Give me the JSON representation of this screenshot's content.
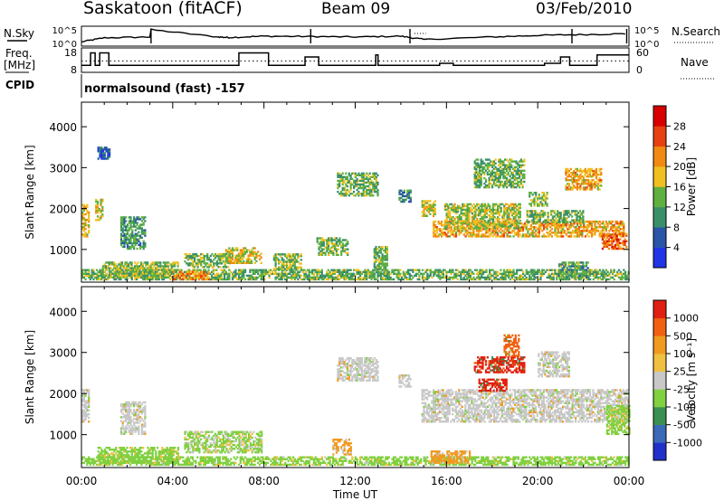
{
  "header": {
    "station": "Saskatoon (fitACF)",
    "beam": "Beam 09",
    "date": "03/Feb/2010"
  },
  "side_labels": {
    "nsky": "N.Sky",
    "freq_line1": "Freq.",
    "freq_line2": "[MHz]",
    "cpid": "CPID",
    "nsearch": "N.Search",
    "nave": "Nave",
    "cpid_text": "normalsound (fast) -157"
  },
  "colors": {
    "power": [
      "#1f35e6",
      "#2a55a8",
      "#3a8f6a",
      "#5fb040",
      "#f0c020",
      "#f08a10",
      "#e84010",
      "#d80000"
    ],
    "velocity": [
      "#e02010",
      "#f06010",
      "#f09a20",
      "#f0c040",
      "#c8c8c8",
      "#80d040",
      "#3a9050",
      "#3a6ab8",
      "#2030c8"
    ]
  },
  "chart_data": [
    {
      "type": "line",
      "name": "noise-panel",
      "left_axis": {
        "label": "N.Sky",
        "ticks": [
          "10^5",
          "10^0"
        ]
      },
      "right_axis": {
        "label": "N.Search",
        "ticks": [
          "10^5",
          "10^0"
        ]
      },
      "x": [
        0,
        1,
        3,
        3.05,
        6,
        6.5,
        8,
        10,
        12,
        14,
        15,
        18,
        20,
        22,
        24
      ],
      "series": [
        {
          "name": "N.Sky",
          "values": [
            0.15,
            0.4,
            0.45,
            0.9,
            0.45,
            0.42,
            0.5,
            0.48,
            0.45,
            0.5,
            0.3,
            0.45,
            0.55,
            0.6,
            0.65
          ]
        }
      ]
    },
    {
      "type": "line",
      "name": "frequency-panel",
      "left_axis": {
        "label": "Freq. [MHz]",
        "ticks": [
          "18",
          "8"
        ]
      },
      "right_axis": {
        "label": "Nave",
        "ticks": [
          "60",
          "0"
        ]
      },
      "x": [
        0,
        0.4,
        0.6,
        0.8,
        1.2,
        6.3,
        6.9,
        8.0,
        8.2,
        8.9,
        9.8,
        10.4,
        11.7,
        12.9,
        13.0,
        14.3,
        15.7,
        16.3,
        19.0,
        20.3,
        21.0,
        21.4,
        22.6,
        24
      ],
      "series": [
        {
          "name": "Freq",
          "values": [
            10.5,
            16.5,
            10.5,
            16.5,
            10.5,
            10.5,
            16.5,
            16.5,
            10.5,
            10.5,
            14.5,
            10.5,
            10.5,
            15.5,
            10.5,
            10.5,
            11.5,
            10.5,
            10.5,
            11.5,
            14.5,
            10.5,
            15.5,
            15.5
          ]
        }
      ],
      "reference_lines": [
        12.6
      ]
    },
    {
      "type": "heatmap",
      "name": "power",
      "ylabel": "Slant Range [km]",
      "yticks": [
        1000,
        2000,
        3000,
        4000
      ],
      "ylim": [
        200,
        4600
      ],
      "xlim": [
        0,
        24
      ],
      "colorbar": {
        "label": "Power [dB]",
        "ticks": [
          4,
          8,
          12,
          16,
          20,
          24,
          28
        ],
        "range": [
          0,
          32
        ]
      },
      "regions": [
        {
          "t0": 0.0,
          "t1": 0.35,
          "r0": 1300,
          "r1": 2100,
          "level": 18
        },
        {
          "t0": 0.6,
          "t1": 0.95,
          "r0": 1700,
          "r1": 2200,
          "level": 17
        },
        {
          "t0": 1.7,
          "t1": 2.8,
          "r0": 1000,
          "r1": 1800,
          "level": 11
        },
        {
          "t0": 0.7,
          "t1": 1.2,
          "r0": 3200,
          "r1": 3500,
          "level": 6
        },
        {
          "t0": 0.0,
          "t1": 24.0,
          "r0": 250,
          "r1": 480,
          "level": 13
        },
        {
          "t0": 0.9,
          "t1": 4.2,
          "r0": 300,
          "r1": 700,
          "level": 15
        },
        {
          "t0": 4.0,
          "t1": 5.6,
          "r0": 250,
          "r1": 450,
          "level": 22
        },
        {
          "t0": 4.5,
          "t1": 6.5,
          "r0": 550,
          "r1": 900,
          "level": 14
        },
        {
          "t0": 6.3,
          "t1": 7.9,
          "r0": 650,
          "r1": 1050,
          "level": 17
        },
        {
          "t0": 8.4,
          "t1": 9.6,
          "r0": 500,
          "r1": 900,
          "level": 15
        },
        {
          "t0": 10.3,
          "t1": 11.7,
          "r0": 850,
          "r1": 1300,
          "level": 14
        },
        {
          "t0": 11.2,
          "t1": 13.0,
          "r0": 2300,
          "r1": 2850,
          "level": 13
        },
        {
          "t0": 13.9,
          "t1": 14.4,
          "r0": 2150,
          "r1": 2450,
          "level": 9
        },
        {
          "t0": 12.8,
          "t1": 13.4,
          "r0": 500,
          "r1": 1050,
          "level": 13
        },
        {
          "t0": 14.9,
          "t1": 15.5,
          "r0": 1800,
          "r1": 2200,
          "level": 17
        },
        {
          "t0": 15.4,
          "t1": 23.8,
          "r0": 1300,
          "r1": 1700,
          "level": 20
        },
        {
          "t0": 15.9,
          "t1": 19.2,
          "r0": 1500,
          "r1": 2100,
          "level": 16
        },
        {
          "t0": 17.2,
          "t1": 19.4,
          "r0": 2500,
          "r1": 3200,
          "level": 13
        },
        {
          "t0": 19.6,
          "t1": 20.4,
          "r0": 2050,
          "r1": 2400,
          "level": 15
        },
        {
          "t0": 21.2,
          "t1": 22.8,
          "r0": 2450,
          "r1": 2950,
          "level": 20
        },
        {
          "t0": 22.8,
          "t1": 23.9,
          "r0": 1000,
          "r1": 1400,
          "level": 24
        },
        {
          "t0": 19.5,
          "t1": 22.0,
          "r0": 1650,
          "r1": 1950,
          "level": 13
        },
        {
          "t0": 20.9,
          "t1": 22.2,
          "r0": 300,
          "r1": 700,
          "level": 12
        }
      ]
    },
    {
      "type": "heatmap",
      "name": "velocity",
      "ylabel": "Slant Range [km]",
      "xlabel": "Time UT",
      "xticks": [
        "00:00",
        "04:00",
        "08:00",
        "12:00",
        "16:00",
        "20:00",
        "00:00"
      ],
      "yticks": [
        1000,
        2000,
        3000,
        4000
      ],
      "ylim": [
        200,
        4600
      ],
      "xlim": [
        0,
        24
      ],
      "colorbar": {
        "label": "Velocity [m s⁻¹]",
        "ticks": [
          1000,
          500,
          100,
          25,
          -25,
          -100,
          -500,
          -1000
        ]
      },
      "regions": [
        {
          "t0": 0.0,
          "t1": 0.35,
          "r0": 1300,
          "r1": 2100,
          "v": 0
        },
        {
          "t0": 1.7,
          "t1": 2.8,
          "r0": 1000,
          "r1": 1800,
          "v": 0
        },
        {
          "t0": 0.7,
          "t1": 4.2,
          "r0": 300,
          "r1": 700,
          "v": 60
        },
        {
          "t0": 0.0,
          "t1": 24.0,
          "r0": 250,
          "r1": 450,
          "v": 40
        },
        {
          "t0": 4.5,
          "t1": 7.9,
          "r0": 550,
          "r1": 1050,
          "v": 30
        },
        {
          "t0": 11.2,
          "t1": 13.0,
          "r0": 2300,
          "r1": 2850,
          "v": 0
        },
        {
          "t0": 13.9,
          "t1": 14.4,
          "r0": 2150,
          "r1": 2450,
          "v": 0
        },
        {
          "t0": 14.9,
          "t1": 24.0,
          "r0": 1300,
          "r1": 2100,
          "v": 0
        },
        {
          "t0": 17.2,
          "t1": 19.4,
          "r0": 2500,
          "r1": 2900,
          "v": -700
        },
        {
          "t0": 18.5,
          "t1": 19.2,
          "r0": 2900,
          "r1": 3400,
          "v": -300
        },
        {
          "t0": 17.4,
          "t1": 18.6,
          "r0": 2050,
          "r1": 2350,
          "v": -700
        },
        {
          "t0": 20.0,
          "t1": 21.4,
          "r0": 2400,
          "r1": 3000,
          "v": 0
        },
        {
          "t0": 23.0,
          "t1": 24.0,
          "r0": 1000,
          "r1": 1700,
          "v": 60
        },
        {
          "t0": 11.0,
          "t1": 11.8,
          "r0": 500,
          "r1": 900,
          "v": -60
        },
        {
          "t0": 15.3,
          "t1": 17.0,
          "r0": 300,
          "r1": 600,
          "v": -60
        }
      ]
    }
  ]
}
